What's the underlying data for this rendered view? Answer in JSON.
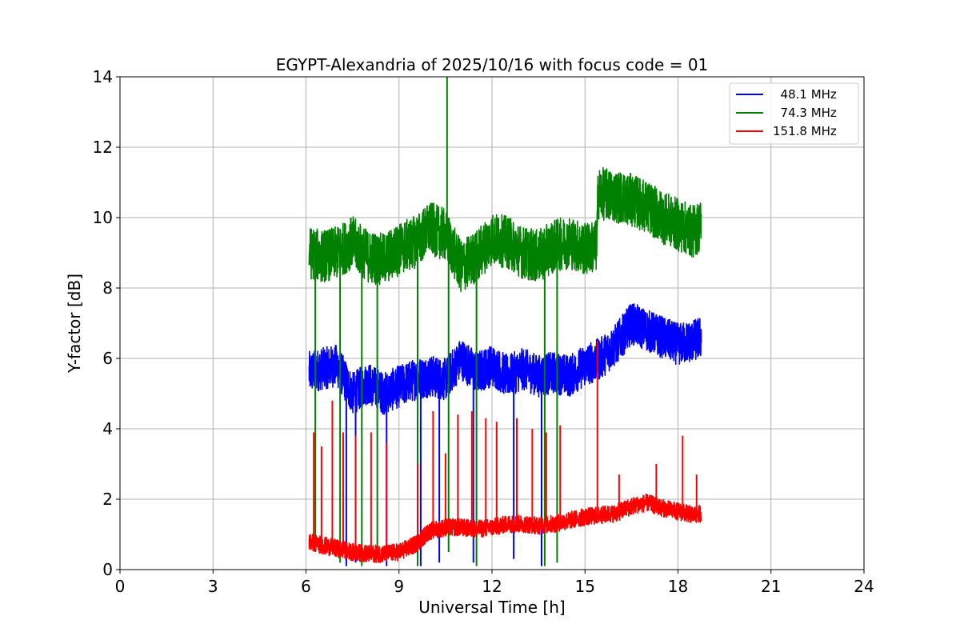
{
  "chart_data": {
    "type": "line",
    "title": "EGYPT-Alexandria of 2025/10/16 with focus code = 01",
    "xlabel": "Universal Time [h]",
    "ylabel": "Y-factor [dB]",
    "xlim": [
      0,
      24
    ],
    "ylim": [
      0,
      14
    ],
    "xticks": [
      0,
      3,
      6,
      9,
      12,
      15,
      18,
      21,
      24
    ],
    "yticks": [
      0,
      2,
      4,
      6,
      8,
      10,
      12,
      14
    ],
    "grid": true,
    "legend_position": "top-right",
    "series": [
      {
        "name": "  48.1 MHz",
        "color": "#0000ff",
        "x_range": [
          6.1,
          18.75
        ],
        "baseline": [
          [
            6.1,
            5.6
          ],
          [
            6.5,
            5.7
          ],
          [
            7.0,
            5.8
          ],
          [
            7.5,
            5.0
          ],
          [
            8.0,
            5.3
          ],
          [
            8.5,
            5.0
          ],
          [
            9.0,
            5.2
          ],
          [
            9.5,
            5.4
          ],
          [
            10.0,
            5.5
          ],
          [
            10.5,
            5.4
          ],
          [
            11.0,
            6.0
          ],
          [
            11.5,
            5.6
          ],
          [
            12.0,
            5.8
          ],
          [
            12.5,
            5.5
          ],
          [
            13.0,
            5.7
          ],
          [
            13.5,
            5.5
          ],
          [
            14.0,
            5.6
          ],
          [
            14.5,
            5.5
          ],
          [
            15.0,
            5.8
          ],
          [
            15.5,
            6.0
          ],
          [
            16.0,
            6.4
          ],
          [
            16.5,
            7.0
          ],
          [
            17.0,
            6.8
          ],
          [
            17.5,
            6.6
          ],
          [
            18.0,
            6.4
          ],
          [
            18.5,
            6.5
          ],
          [
            18.75,
            6.6
          ]
        ],
        "amplitude": 0.6,
        "spikes": [
          [
            7.3,
            0.1
          ],
          [
            7.6,
            0.2
          ],
          [
            8.6,
            0.1
          ],
          [
            9.7,
            0.1
          ],
          [
            10.3,
            0.2
          ],
          [
            11.4,
            0.2
          ],
          [
            12.7,
            0.3
          ],
          [
            13.6,
            0.1
          ]
        ]
      },
      {
        "name": "  74.3 MHz",
        "color": "#008000",
        "x_range": [
          6.1,
          18.75
        ],
        "baseline": [
          [
            6.1,
            9.0
          ],
          [
            6.5,
            8.9
          ],
          [
            7.0,
            9.0
          ],
          [
            7.5,
            9.3
          ],
          [
            8.0,
            8.9
          ],
          [
            8.5,
            8.8
          ],
          [
            9.0,
            9.1
          ],
          [
            9.5,
            9.3
          ],
          [
            10.0,
            9.7
          ],
          [
            10.5,
            9.5
          ],
          [
            11.0,
            8.6
          ],
          [
            11.5,
            8.9
          ],
          [
            12.0,
            9.4
          ],
          [
            12.5,
            9.3
          ],
          [
            13.0,
            9.0
          ],
          [
            13.5,
            8.9
          ],
          [
            14.0,
            9.2
          ],
          [
            14.5,
            9.3
          ],
          [
            15.0,
            9.1
          ],
          [
            15.38,
            9.2
          ],
          [
            15.42,
            10.7
          ],
          [
            16.0,
            10.6
          ],
          [
            16.5,
            10.5
          ],
          [
            17.0,
            10.3
          ],
          [
            17.5,
            10.0
          ],
          [
            18.0,
            9.8
          ],
          [
            18.5,
            9.6
          ],
          [
            18.75,
            9.8
          ]
        ],
        "amplitude": 0.75,
        "spikes": [
          [
            10.55,
            14.0
          ],
          [
            6.3,
            0.5
          ],
          [
            7.1,
            0.2
          ],
          [
            7.8,
            0.1
          ],
          [
            8.3,
            0.3
          ],
          [
            9.6,
            0.1
          ],
          [
            10.6,
            0.5
          ],
          [
            11.5,
            0.1
          ],
          [
            13.7,
            0.1
          ],
          [
            14.1,
            0.2
          ]
        ]
      },
      {
        "name": "151.8 MHz",
        "color": "#ff0000",
        "x_range": [
          6.1,
          18.75
        ],
        "baseline": [
          [
            6.1,
            0.8
          ],
          [
            6.5,
            0.7
          ],
          [
            7.0,
            0.6
          ],
          [
            7.5,
            0.5
          ],
          [
            8.0,
            0.45
          ],
          [
            8.5,
            0.45
          ],
          [
            9.0,
            0.5
          ],
          [
            9.5,
            0.7
          ],
          [
            10.0,
            1.1
          ],
          [
            10.5,
            1.2
          ],
          [
            11.0,
            1.2
          ],
          [
            11.5,
            1.15
          ],
          [
            12.0,
            1.2
          ],
          [
            12.5,
            1.3
          ],
          [
            13.0,
            1.3
          ],
          [
            13.5,
            1.25
          ],
          [
            14.0,
            1.3
          ],
          [
            14.5,
            1.4
          ],
          [
            15.0,
            1.5
          ],
          [
            15.5,
            1.55
          ],
          [
            16.0,
            1.6
          ],
          [
            16.5,
            1.8
          ],
          [
            17.0,
            1.9
          ],
          [
            17.5,
            1.75
          ],
          [
            18.0,
            1.65
          ],
          [
            18.5,
            1.55
          ],
          [
            18.75,
            1.6
          ]
        ],
        "amplitude": 0.25,
        "spikes": [
          [
            6.25,
            3.9
          ],
          [
            6.5,
            3.5
          ],
          [
            6.85,
            4.8
          ],
          [
            7.2,
            3.9
          ],
          [
            7.6,
            3.8
          ],
          [
            8.1,
            3.9
          ],
          [
            8.6,
            3.6
          ],
          [
            9.6,
            3.0
          ],
          [
            10.1,
            4.5
          ],
          [
            10.5,
            3.3
          ],
          [
            10.9,
            4.4
          ],
          [
            11.35,
            4.5
          ],
          [
            11.8,
            4.3
          ],
          [
            12.15,
            4.2
          ],
          [
            12.8,
            4.3
          ],
          [
            13.3,
            4.0
          ],
          [
            13.75,
            3.9
          ],
          [
            14.2,
            4.1
          ],
          [
            15.4,
            6.5
          ],
          [
            16.1,
            2.7
          ],
          [
            17.3,
            3.0
          ],
          [
            18.15,
            3.8
          ],
          [
            18.6,
            2.7
          ]
        ]
      }
    ]
  }
}
